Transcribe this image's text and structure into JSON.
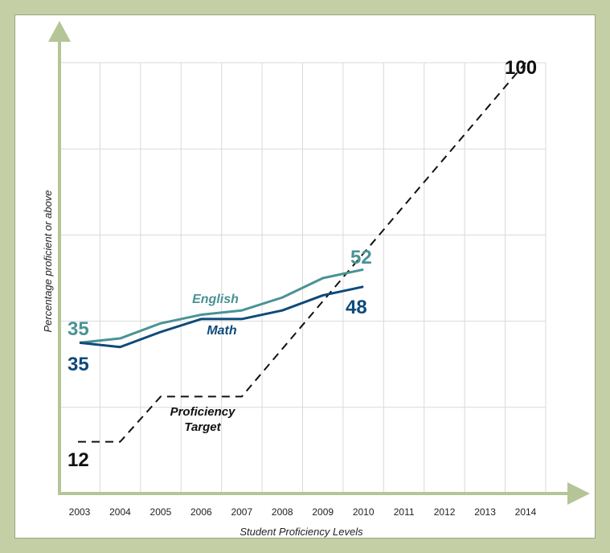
{
  "colors": {
    "frame": "#c5cfa6",
    "axis": "#b5c597",
    "grid": "#d9d9d9",
    "english": "#4a9295",
    "math": "#0e4a7a",
    "target": "#111111"
  },
  "chart_data": {
    "type": "line",
    "xlabel": "Student Proficiency Levels",
    "ylabel": "Percentage proficient or above",
    "x": [
      "2003",
      "2004",
      "2005",
      "2006",
      "2007",
      "2008",
      "2009",
      "2010",
      "2011",
      "2012",
      "2013",
      "2014"
    ],
    "ylim": [
      0,
      100
    ],
    "grid": true,
    "series": [
      {
        "name": "English",
        "x": [
          2003,
          2004,
          2005,
          2006,
          2007,
          2008,
          2009,
          2009.5,
          2010
        ],
        "values": [
          35,
          36,
          39.5,
          41.5,
          42.5,
          45.5,
          50,
          51,
          52
        ],
        "start_label": "35",
        "end_label": "52"
      },
      {
        "name": "Math",
        "x": [
          2003,
          2004,
          2005,
          2006,
          2007,
          2008,
          2009,
          2010
        ],
        "values": [
          35,
          34,
          37.5,
          40.5,
          40.5,
          42.5,
          46,
          48
        ],
        "start_label": "35",
        "end_label": "48"
      },
      {
        "name": "Proficiency Target",
        "name_lines": [
          "Proficiency",
          "Target"
        ],
        "x": [
          2003,
          2004,
          2005,
          2007,
          2014
        ],
        "values": [
          12,
          12,
          22.5,
          22.5,
          100
        ],
        "start_label": "12",
        "end_label": "100"
      }
    ]
  }
}
